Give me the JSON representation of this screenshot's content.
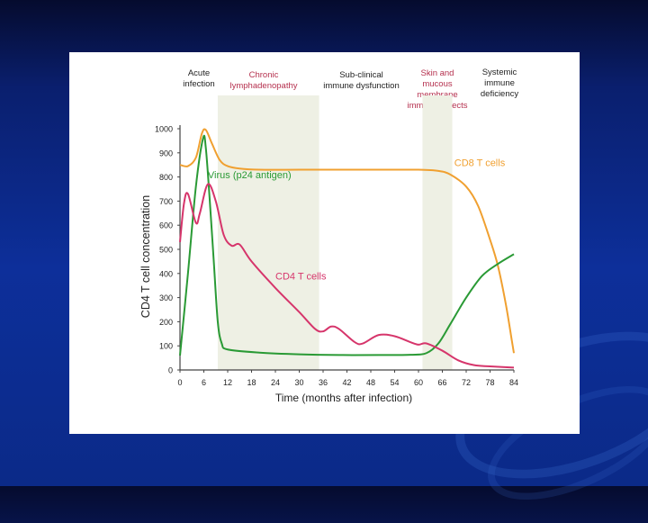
{
  "chart_data": {
    "type": "line",
    "xlabel": "Time (months after infection)",
    "ylabel": "CD4 T cell concentration",
    "xlim": [
      0,
      84
    ],
    "ylim": [
      0,
      1000
    ],
    "x_ticks": [
      "0",
      "6",
      "12",
      "18",
      "24",
      "30",
      "36",
      "42",
      "48",
      "54",
      "60",
      "66",
      "72",
      "78",
      "84"
    ],
    "y_ticks": [
      "0",
      "100",
      "200",
      "300",
      "400",
      "500",
      "600",
      "700",
      "800",
      "900",
      "1000"
    ],
    "shaded_regions": [
      [
        9.5,
        35
      ],
      [
        61,
        68.5
      ]
    ],
    "phases": [
      {
        "label": "Acute\ninfection",
        "color": "#222222"
      },
      {
        "label": "Chronic\nlymphadenopathy",
        "color": "#b5304e"
      },
      {
        "label": "Sub-clinical\nimmune dysfunction",
        "color": "#222222"
      },
      {
        "label": "Skin and\nmucous\nmembrane\nimmune defects",
        "color": "#b5304e"
      },
      {
        "label": "Systemic\nimmune\ndeficiency",
        "color": "#222222"
      }
    ],
    "series": [
      {
        "name": "CD8 T cells",
        "color": "#f0a030",
        "points": [
          [
            0,
            850
          ],
          [
            2,
            845
          ],
          [
            4,
            880
          ],
          [
            5.5,
            980
          ],
          [
            6.5,
            995
          ],
          [
            8,
            940
          ],
          [
            10,
            870
          ],
          [
            12,
            845
          ],
          [
            15,
            835
          ],
          [
            20,
            830
          ],
          [
            30,
            830
          ],
          [
            40,
            830
          ],
          [
            50,
            830
          ],
          [
            60,
            830
          ],
          [
            65,
            825
          ],
          [
            68,
            810
          ],
          [
            72,
            760
          ],
          [
            75,
            680
          ],
          [
            78,
            540
          ],
          [
            80,
            430
          ],
          [
            82,
            270
          ],
          [
            83.5,
            120
          ],
          [
            84,
            70
          ]
        ]
      },
      {
        "name": "Virus (p24 antigen)",
        "color": "#2a9a35",
        "points": [
          [
            0,
            60
          ],
          [
            2,
            400
          ],
          [
            4,
            760
          ],
          [
            5.8,
            960
          ],
          [
            6.5,
            920
          ],
          [
            7.5,
            700
          ],
          [
            8.5,
            450
          ],
          [
            9.5,
            200
          ],
          [
            10.5,
            110
          ],
          [
            12,
            85
          ],
          [
            20,
            72
          ],
          [
            30,
            65
          ],
          [
            40,
            62
          ],
          [
            50,
            62
          ],
          [
            58,
            63
          ],
          [
            62,
            70
          ],
          [
            65,
            110
          ],
          [
            68,
            190
          ],
          [
            72,
            300
          ],
          [
            76,
            390
          ],
          [
            80,
            440
          ],
          [
            84,
            480
          ]
        ]
      },
      {
        "name": "CD4 T cells",
        "color": "#d6356b",
        "points": [
          [
            0,
            530
          ],
          [
            1,
            690
          ],
          [
            2,
            730
          ],
          [
            4,
            610
          ],
          [
            5,
            650
          ],
          [
            7,
            770
          ],
          [
            9,
            700
          ],
          [
            11,
            560
          ],
          [
            13,
            515
          ],
          [
            15,
            520
          ],
          [
            18,
            450
          ],
          [
            24,
            340
          ],
          [
            30,
            240
          ],
          [
            34,
            170
          ],
          [
            36,
            160
          ],
          [
            38,
            180
          ],
          [
            40,
            170
          ],
          [
            44,
            115
          ],
          [
            46,
            110
          ],
          [
            50,
            145
          ],
          [
            54,
            140
          ],
          [
            58,
            115
          ],
          [
            60,
            105
          ],
          [
            62,
            110
          ],
          [
            66,
            80
          ],
          [
            70,
            40
          ],
          [
            74,
            20
          ],
          [
            78,
            15
          ],
          [
            84,
            10
          ]
        ]
      }
    ],
    "annotations": [
      {
        "text": "Virus (p24 antigen)",
        "x": 7,
        "y": 795,
        "color": "#2a9a35"
      },
      {
        "text": "CD8 T cells",
        "x": 69,
        "y": 845,
        "color": "#f0a030"
      },
      {
        "text": "CD4 T cells",
        "x": 24,
        "y": 375,
        "color": "#d6356b"
      }
    ]
  }
}
